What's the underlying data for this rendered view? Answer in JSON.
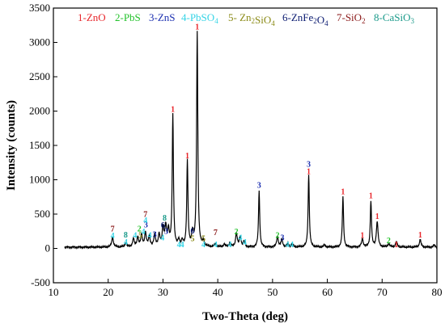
{
  "chart_data": {
    "type": "line",
    "xlabel": "Two-Theta (deg)",
    "ylabel": "Intensity (counts)",
    "xlim": [
      10,
      80
    ],
    "ylim": [
      -500,
      3500
    ],
    "xticks": [
      10,
      20,
      30,
      40,
      50,
      60,
      70,
      80
    ],
    "yticks": [
      -500,
      0,
      500,
      1000,
      1500,
      2000,
      2500,
      3000,
      3500
    ],
    "grid": false,
    "legend_position": "top",
    "legend": [
      {
        "text": "1-ZnO",
        "color": "#e8262b"
      },
      {
        "text": "2-PbS",
        "color": "#22c22a"
      },
      {
        "text": "3-ZnS",
        "color": "#1b2fb0"
      },
      {
        "text": "4-PbSO4",
        "color": "#35d4e6"
      },
      {
        "text": "5- Zn2SiO4",
        "color": "#8a8a16"
      },
      {
        "text": "6-ZnFe2O4",
        "color": "#0a1a70"
      },
      {
        "text": "7-SiO2",
        "color": "#8b1a1a"
      },
      {
        "text": "8-CaSiO3",
        "color": "#1a9a8a"
      }
    ],
    "series": [
      {
        "color": "#000000",
        "peaks": [
          {
            "x": 20.8,
            "y": 150
          },
          {
            "x": 23.2,
            "y": 60
          },
          {
            "x": 24.6,
            "y": 120
          },
          {
            "x": 25.4,
            "y": 140
          },
          {
            "x": 26.1,
            "y": 170
          },
          {
            "x": 26.8,
            "y": 200
          },
          {
            "x": 27.5,
            "y": 150
          },
          {
            "x": 28.5,
            "y": 180
          },
          {
            "x": 29.3,
            "y": 170
          },
          {
            "x": 30.0,
            "y": 270
          },
          {
            "x": 30.5,
            "y": 280
          },
          {
            "x": 31.0,
            "y": 230
          },
          {
            "x": 31.8,
            "y": 1930
          },
          {
            "x": 32.9,
            "y": 90
          },
          {
            "x": 33.5,
            "y": 80
          },
          {
            "x": 34.45,
            "y": 1250
          },
          {
            "x": 35.4,
            "y": 200
          },
          {
            "x": 36.25,
            "y": 3130
          },
          {
            "x": 37.4,
            "y": 80
          },
          {
            "x": 39.6,
            "y": 50
          },
          {
            "x": 41.2,
            "y": 40
          },
          {
            "x": 42.2,
            "y": 60
          },
          {
            "x": 43.4,
            "y": 200
          },
          {
            "x": 44.1,
            "y": 150
          },
          {
            "x": 44.8,
            "y": 80
          },
          {
            "x": 47.55,
            "y": 820
          },
          {
            "x": 50.9,
            "y": 150
          },
          {
            "x": 51.7,
            "y": 110
          },
          {
            "x": 52.8,
            "y": 50
          },
          {
            "x": 53.6,
            "y": 40
          },
          {
            "x": 56.6,
            "y": 1060
          },
          {
            "x": 59.5,
            "y": 30
          },
          {
            "x": 62.85,
            "y": 730
          },
          {
            "x": 66.4,
            "y": 120
          },
          {
            "x": 67.95,
            "y": 670
          },
          {
            "x": 69.1,
            "y": 370
          },
          {
            "x": 71.2,
            "y": 50
          },
          {
            "x": 72.6,
            "y": 80
          },
          {
            "x": 76.95,
            "y": 110
          },
          {
            "x": 79.5,
            "y": 30
          }
        ]
      }
    ],
    "peak_labels": [
      {
        "text": "7",
        "x": 20.8,
        "y": 245,
        "color": "#8b1a1a"
      },
      {
        "text": "4",
        "x": 20.8,
        "y": 145,
        "color": "#35d4e6"
      },
      {
        "text": "8",
        "x": 23.2,
        "y": 160,
        "color": "#1a9a8a"
      },
      {
        "text": "4",
        "x": 23.2,
        "y": 55,
        "color": "#35d4e6"
      },
      {
        "text": "4",
        "x": 24.9,
        "y": 155,
        "color": "#35d4e6"
      },
      {
        "text": "2",
        "x": 25.7,
        "y": 250,
        "color": "#22c22a"
      },
      {
        "text": "5",
        "x": 25.9,
        "y": 155,
        "color": "#8a8a16"
      },
      {
        "text": "3",
        "x": 26.9,
        "y": 305,
        "color": "#1b2fb0"
      },
      {
        "text": "4",
        "x": 26.4,
        "y": 205,
        "color": "#35d4e6"
      },
      {
        "text": "4",
        "x": 27.6,
        "y": 155,
        "color": "#35d4e6"
      },
      {
        "text": "7",
        "x": 26.8,
        "y": 460,
        "color": "#8b1a1a"
      },
      {
        "text": "4",
        "x": 26.8,
        "y": 370,
        "color": "#35d4e6"
      },
      {
        "text": "3",
        "x": 28.5,
        "y": 165,
        "color": "#1b2fb0"
      },
      {
        "text": "8",
        "x": 30.3,
        "y": 405,
        "color": "#1a9a8a"
      },
      {
        "text": "6",
        "x": 30.0,
        "y": 300,
        "color": "#0a1a70"
      },
      {
        "text": "3",
        "x": 30.6,
        "y": 210,
        "color": "#1b2fb0"
      },
      {
        "text": "4",
        "x": 29.9,
        "y": 115,
        "color": "#35d4e6"
      },
      {
        "text": "1",
        "x": 31.8,
        "y": 1990,
        "color": "#e8262b"
      },
      {
        "text": "4",
        "x": 32.9,
        "y": 20,
        "color": "#35d4e6"
      },
      {
        "text": "4",
        "x": 33.5,
        "y": 20,
        "color": "#35d4e6"
      },
      {
        "text": "1",
        "x": 34.45,
        "y": 1310,
        "color": "#e8262b"
      },
      {
        "text": "6",
        "x": 35.4,
        "y": 215,
        "color": "#0a1a70"
      },
      {
        "text": "5",
        "x": 35.4,
        "y": 105,
        "color": "#8a8a16"
      },
      {
        "text": "1",
        "x": 36.25,
        "y": 3190,
        "color": "#e8262b"
      },
      {
        "text": "5",
        "x": 37.4,
        "y": 105,
        "color": "#8a8a16"
      },
      {
        "text": "4",
        "x": 37.4,
        "y": 20,
        "color": "#35d4e6"
      },
      {
        "text": "7",
        "x": 39.6,
        "y": 195,
        "color": "#8b1a1a"
      },
      {
        "text": "4",
        "x": 39.6,
        "y": 20,
        "color": "#35d4e6"
      },
      {
        "text": "4",
        "x": 42.2,
        "y": 20,
        "color": "#35d4e6"
      },
      {
        "text": "2",
        "x": 43.4,
        "y": 205,
        "color": "#22c22a"
      },
      {
        "text": "4",
        "x": 44.1,
        "y": 120,
        "color": "#35d4e6"
      },
      {
        "text": "4",
        "x": 44.9,
        "y": 55,
        "color": "#35d4e6"
      },
      {
        "text": "3",
        "x": 47.55,
        "y": 880,
        "color": "#1b2fb0"
      },
      {
        "text": "2",
        "x": 50.9,
        "y": 155,
        "color": "#22c22a"
      },
      {
        "text": "3",
        "x": 51.8,
        "y": 120,
        "color": "#1b2fb0"
      },
      {
        "text": "4",
        "x": 52.7,
        "y": 20,
        "color": "#35d4e6"
      },
      {
        "text": "4",
        "x": 53.5,
        "y": 20,
        "color": "#35d4e6"
      },
      {
        "text": "3",
        "x": 56.6,
        "y": 1190,
        "color": "#1b2fb0"
      },
      {
        "text": "1",
        "x": 56.6,
        "y": 1080,
        "color": "#e8262b"
      },
      {
        "text": "1",
        "x": 62.85,
        "y": 790,
        "color": "#e8262b"
      },
      {
        "text": "1",
        "x": 66.4,
        "y": 155,
        "color": "#e8262b"
      },
      {
        "text": "1",
        "x": 67.95,
        "y": 730,
        "color": "#e8262b"
      },
      {
        "text": "1",
        "x": 69.1,
        "y": 430,
        "color": "#e8262b"
      },
      {
        "text": "2",
        "x": 71.2,
        "y": 75,
        "color": "#22c22a"
      },
      {
        "text": "1",
        "x": 72.6,
        "y": 20,
        "color": "#e8262b"
      },
      {
        "text": "1",
        "x": 76.95,
        "y": 160,
        "color": "#e8262b"
      }
    ]
  }
}
